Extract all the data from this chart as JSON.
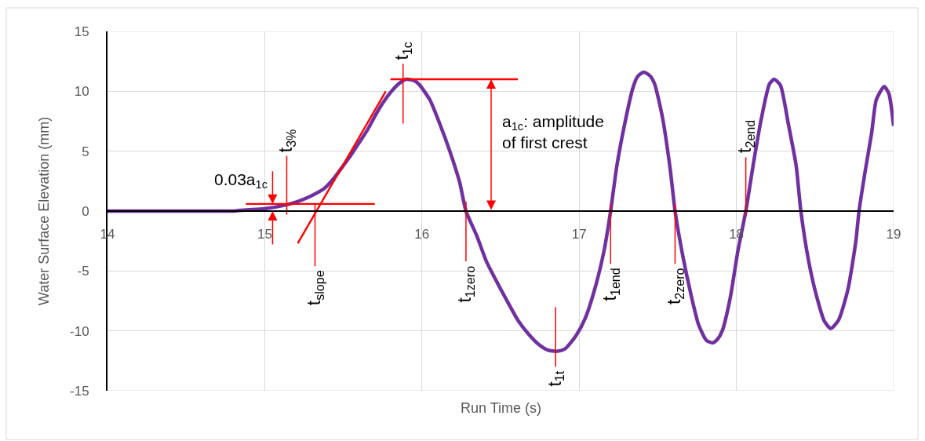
{
  "chart_data": {
    "type": "line",
    "xlabel": "Run Time (s)",
    "ylabel": "Water Surface Elevation (mm)",
    "xlim": [
      14,
      19
    ],
    "xticks": [
      14,
      15,
      16,
      17,
      18,
      19
    ],
    "ylim": [
      -15,
      15
    ],
    "yticks": [
      -15,
      -10,
      -5,
      0,
      5,
      10,
      15
    ],
    "grid": true,
    "series": [
      {
        "color": "#7030a0",
        "x": [
          14.0,
          14.2,
          14.4,
          14.6,
          14.8,
          14.88,
          15.0,
          15.13,
          15.21,
          15.3,
          15.38,
          15.45,
          15.5,
          15.55,
          15.6,
          15.65,
          15.7,
          15.75,
          15.8,
          15.85,
          15.9,
          15.95,
          15.98,
          16.05,
          16.11,
          16.18,
          16.24,
          16.28,
          16.35,
          16.41,
          16.48,
          16.55,
          16.61,
          16.68,
          16.74,
          16.8,
          16.86,
          16.91,
          16.98,
          17.04,
          17.11,
          17.16,
          17.2,
          17.24,
          17.29,
          17.34,
          17.37,
          17.41,
          17.45,
          17.48,
          17.53,
          17.58,
          17.61,
          17.66,
          17.71,
          17.76,
          17.81,
          17.85,
          17.88,
          17.91,
          17.96,
          18.01,
          18.06,
          18.11,
          18.16,
          18.21,
          18.24,
          18.28,
          18.33,
          18.38,
          18.41,
          18.46,
          18.51,
          18.56,
          18.6,
          18.65,
          18.71,
          18.76,
          18.78,
          18.82,
          18.86,
          18.89,
          18.94,
          18.97,
          19.0
        ],
        "values": [
          0,
          0,
          0,
          0,
          0,
          0.1,
          0.2,
          0.5,
          0.8,
          1.3,
          1.9,
          2.9,
          3.8,
          4.7,
          5.7,
          6.7,
          7.9,
          9.0,
          9.9,
          10.6,
          11.0,
          10.9,
          10.6,
          9.3,
          7.4,
          4.9,
          2.4,
          0,
          -2.1,
          -4.2,
          -6.0,
          -7.7,
          -9.1,
          -10.3,
          -11.1,
          -11.6,
          -11.7,
          -11.5,
          -10.4,
          -8.9,
          -6.0,
          -3.2,
          0,
          3.8,
          7.3,
          10.2,
          11.2,
          11.6,
          11.3,
          10.6,
          7.8,
          3.4,
          0,
          -3.8,
          -6.9,
          -9.5,
          -10.8,
          -11.0,
          -10.7,
          -10.0,
          -7.3,
          -3.3,
          0,
          4.1,
          7.8,
          10.6,
          11.0,
          10.5,
          7.3,
          3.8,
          0,
          -4.2,
          -7.1,
          -9.2,
          -9.8,
          -9.1,
          -6.5,
          -2.5,
          0,
          3.4,
          6.5,
          9.3,
          10.4,
          9.8,
          7.1
        ]
      },
      {
        "type": "line",
        "color": "#ff0000",
        "x": [
          15.21,
          15.77
        ],
        "values": [
          -2.7,
          10.0
        ]
      },
      {
        "type": "line",
        "color": "#ff0000",
        "x": [
          14.88,
          15.7
        ],
        "values": [
          0.6,
          0.6
        ]
      },
      {
        "type": "line",
        "color": "#ff0000",
        "x": [
          15.8,
          16.61
        ],
        "values": [
          11.0,
          11.0
        ]
      },
      {
        "type": "line",
        "color": "#ff0000",
        "x": [
          15.88,
          15.88
        ],
        "values": [
          12.3,
          7.3
        ]
      },
      {
        "type": "line",
        "color": "#ff0000",
        "x": [
          15.14,
          15.14
        ],
        "values": [
          4.6,
          -0.3
        ]
      },
      {
        "type": "line",
        "color": "#ff0000",
        "x": [
          15.32,
          15.32
        ],
        "values": [
          0.6,
          -4.6
        ]
      },
      {
        "type": "line",
        "color": "#ff0000",
        "x": [
          16.28,
          16.28
        ],
        "values": [
          0.8,
          -4.2
        ]
      },
      {
        "type": "line",
        "color": "#ff0000",
        "x": [
          16.85,
          16.85
        ],
        "values": [
          -8.0,
          -13.0
        ]
      },
      {
        "type": "line",
        "color": "#ff0000",
        "x": [
          17.2,
          17.2
        ],
        "values": [
          0.6,
          -4.4
        ]
      },
      {
        "type": "line",
        "color": "#ff0000",
        "x": [
          17.61,
          17.61
        ],
        "values": [
          0.6,
          -4.4
        ]
      },
      {
        "type": "line",
        "color": "#ff0000",
        "x": [
          18.06,
          18.06
        ],
        "values": [
          4.5,
          -0.4
        ]
      }
    ],
    "annotations": [
      {
        "text": "0.03a$_{1c}$",
        "x": 15.05,
        "y": 0.6
      },
      {
        "text": "a$_{1c}$: amplitude\nof first crest",
        "x": 16.44,
        "y": 11.0
      },
      {
        "text": "t$_{1c}$",
        "x": 15.88,
        "y": 12.3
      },
      {
        "text": "t$_{3%}$",
        "x": 15.14,
        "y": 4.6
      },
      {
        "text": "t$_{slope}$",
        "x": 15.32,
        "y": -4.6
      },
      {
        "text": "t$_{1zero}$",
        "x": 16.28,
        "y": -4.2
      },
      {
        "text": "t$_{1t}$",
        "x": 16.85,
        "y": -13.0
      },
      {
        "text": "t$_{1end}$",
        "x": 17.2,
        "y": -4.4
      },
      {
        "text": "t$_{2zero}$",
        "x": 17.61,
        "y": -4.4
      },
      {
        "text": "t$_{2end}$",
        "x": 18.06,
        "y": 4.5
      }
    ]
  }
}
